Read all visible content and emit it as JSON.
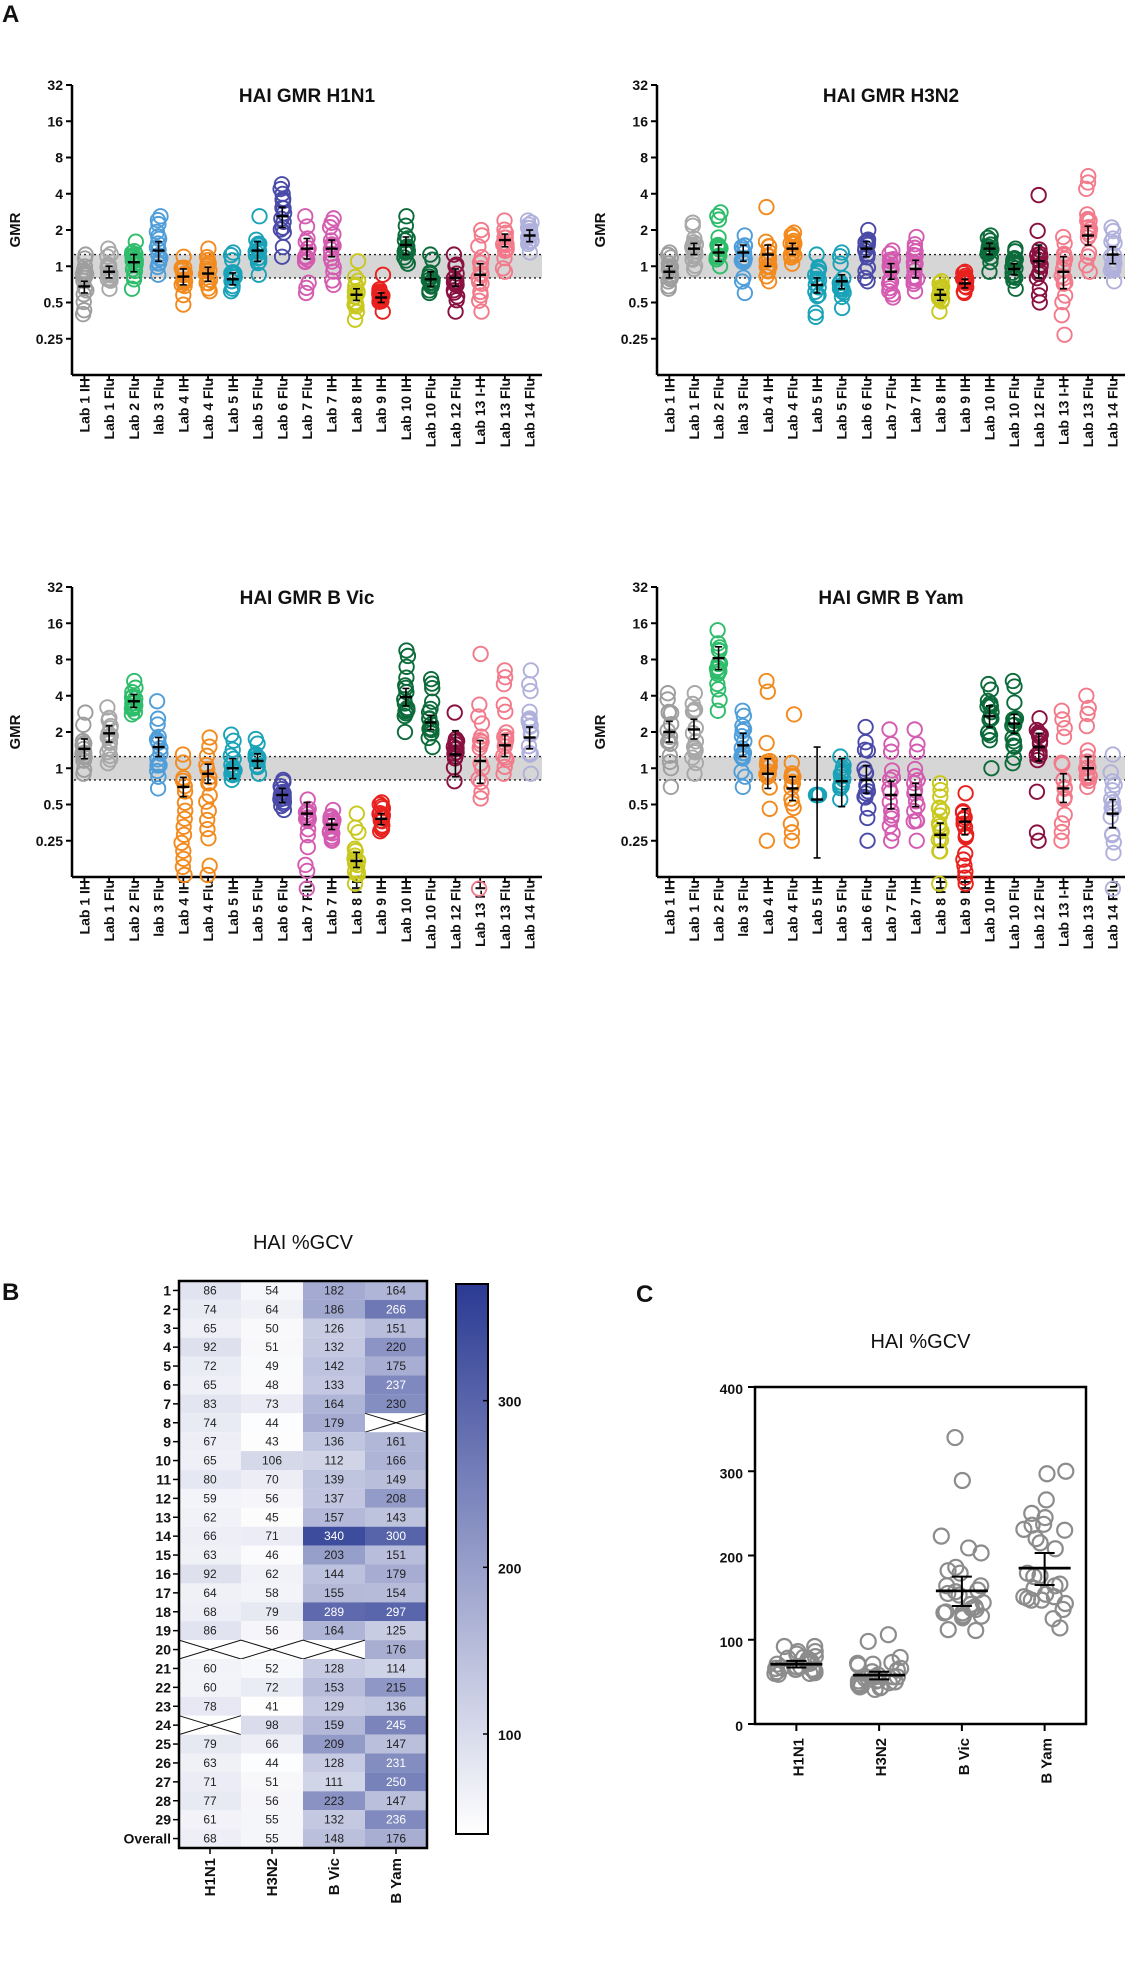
{
  "panel_labels": {
    "a": "A",
    "b": "B",
    "c": "C"
  },
  "chart_data": [
    {
      "type": "scatter",
      "title": "HAI GMR H1N1",
      "ylabel": "GMR",
      "yscale": "log2",
      "ylim": [
        0.125,
        32
      ],
      "yticks": [
        "0.25",
        "0.5",
        "1",
        "2",
        "4",
        "8",
        "16",
        "32"
      ],
      "band": [
        0.8,
        1.25
      ],
      "categories": [
        "Lab 1 IH",
        "Lab 1 Flu",
        "Lab 2 Flu",
        "lab 3 Flu",
        "Lab 4 IH",
        "Lab 4 Flu",
        "Lab 5 IH",
        "Lab 5 Flu",
        "Lab 6 Flu",
        "Lab 7 Flu",
        "Lab 7 IH",
        "Lab 8 IH",
        "Lab 9 IH",
        "Lab 10 IH",
        "Lab 10 Flu",
        "Lab 12 Flu",
        "Lab 13 I-H",
        "Lab 13 Flu",
        "Lab 14 Flu"
      ],
      "colors": [
        "#9e9e9e",
        "#a8a8a8",
        "#2ebd6b",
        "#4f9ed9",
        "#f28a1e",
        "#f28a1e",
        "#1aa3b8",
        "#1aa3b8",
        "#4a4aa8",
        "#d45bb0",
        "#d45bb0",
        "#c8c81e",
        "#e8201e",
        "#0c6b3a",
        "#0c6b3a",
        "#8a1040",
        "#f27a8a",
        "#f27a8a",
        "#b0b0dc"
      ],
      "gmr": [
        0.68,
        0.9,
        1.08,
        1.35,
        0.82,
        0.87,
        0.78,
        1.35,
        2.6,
        1.4,
        1.4,
        0.58,
        0.55,
        1.5,
        0.78,
        0.8,
        0.85,
        1.65,
        1.8
      ],
      "ci_low": [
        0.6,
        0.8,
        0.9,
        1.1,
        0.7,
        0.75,
        0.7,
        1.1,
        2.1,
        1.15,
        1.2,
        0.52,
        0.5,
        1.25,
        0.68,
        0.68,
        0.7,
        1.45,
        1.6
      ],
      "ci_high": [
        0.75,
        1.0,
        1.25,
        1.6,
        0.95,
        0.98,
        0.88,
        1.6,
        3.1,
        1.7,
        1.65,
        0.65,
        0.6,
        1.75,
        0.9,
        0.95,
        1.05,
        1.85,
        2.0
      ],
      "spread_low": [
        0.4,
        0.65,
        0.65,
        0.85,
        0.48,
        0.62,
        0.62,
        0.85,
        1.2,
        0.6,
        0.7,
        0.36,
        0.42,
        1.05,
        0.6,
        0.42,
        0.42,
        0.9,
        1.3
      ],
      "spread_high": [
        1.25,
        1.4,
        1.6,
        2.6,
        1.2,
        1.4,
        1.3,
        2.6,
        4.8,
        2.6,
        2.5,
        1.1,
        0.85,
        2.6,
        1.25,
        1.25,
        2.0,
        2.4,
        2.4
      ]
    },
    {
      "type": "scatter",
      "title": "HAI GMR H3N2",
      "ylabel": "GMR",
      "yscale": "log2",
      "ylim": [
        0.125,
        32
      ],
      "yticks": [
        "0.25",
        "0.5",
        "1",
        "2",
        "4",
        "8",
        "16",
        "32"
      ],
      "band": [
        0.8,
        1.25
      ],
      "categories": [
        "Lab 1 IH",
        "Lab 1 Flu",
        "Lab 2 Flu",
        "lab 3 Flu",
        "Lab 4 IH",
        "Lab 4 Flu",
        "Lab 5 IH",
        "Lab 5 Flu",
        "Lab 6 Flu",
        "Lab 7 Flu",
        "Lab 7 IH",
        "Lab 8 IH",
        "Lab 9 IH",
        "Lab 10 IH",
        "Lab 10 Flu",
        "Lab 12 Flu",
        "Lab 13 I-H",
        "Lab 13 Flu",
        "Lab 14 Flu"
      ],
      "colors": [
        "#9e9e9e",
        "#a8a8a8",
        "#2ebd6b",
        "#4f9ed9",
        "#f28a1e",
        "#f28a1e",
        "#1aa3b8",
        "#1aa3b8",
        "#4a4aa8",
        "#d45bb0",
        "#d45bb0",
        "#c8c81e",
        "#e8201e",
        "#0c6b3a",
        "#0c6b3a",
        "#8a1040",
        "#f27a8a",
        "#f27a8a",
        "#b0b0dc"
      ],
      "gmr": [
        0.9,
        1.4,
        1.3,
        1.3,
        1.25,
        1.4,
        0.7,
        0.75,
        1.4,
        0.9,
        0.95,
        0.58,
        0.72,
        1.4,
        0.95,
        1.1,
        0.9,
        1.8,
        1.25
      ],
      "ci_low": [
        0.8,
        1.25,
        1.1,
        1.1,
        1.0,
        1.25,
        0.6,
        0.65,
        1.2,
        0.78,
        0.8,
        0.52,
        0.66,
        1.25,
        0.85,
        0.8,
        0.65,
        1.5,
        1.05
      ],
      "ci_high": [
        1.0,
        1.55,
        1.5,
        1.5,
        1.5,
        1.55,
        0.8,
        0.85,
        1.6,
        1.05,
        1.12,
        0.64,
        0.78,
        1.55,
        1.05,
        1.5,
        1.2,
        2.15,
        1.45
      ],
      "spread_low": [
        0.65,
        0.95,
        1.0,
        0.6,
        0.75,
        1.05,
        0.38,
        0.45,
        0.75,
        0.55,
        0.62,
        0.42,
        0.6,
        0.9,
        0.65,
        0.5,
        0.27,
        0.9,
        0.75
      ],
      "spread_high": [
        1.3,
        2.3,
        2.8,
        1.8,
        3.1,
        1.9,
        1.25,
        1.3,
        2.0,
        1.35,
        1.75,
        0.75,
        0.9,
        1.8,
        1.4,
        3.9,
        1.75,
        5.6,
        2.1
      ]
    },
    {
      "type": "scatter",
      "title": "HAI GMR B Vic",
      "ylabel": "GMR",
      "yscale": "log2",
      "ylim": [
        0.125,
        32
      ],
      "yticks": [
        "0.25",
        "0.5",
        "1",
        "2",
        "4",
        "8",
        "16",
        "32"
      ],
      "band": [
        0.8,
        1.25
      ],
      "categories": [
        "Lab 1 IH",
        "Lab 1 Flu",
        "Lab 2 Flu",
        "lab 3 Flu",
        "Lab 4 IH",
        "Lab 4 Flu",
        "Lab 5 IH",
        "Lab 5 Flu",
        "Lab 6 Flu",
        "Lab 7 Flu",
        "Lab 7 IH",
        "Lab 8 IH",
        "Lab 9 IH",
        "Lab 10 IH",
        "Lab 10 Flu",
        "Lab 12 Flu",
        "Lab 13 I-H",
        "Lab 13 Flu",
        "Lab 14 Flu"
      ],
      "colors": [
        "#9e9e9e",
        "#a8a8a8",
        "#2ebd6b",
        "#4f9ed9",
        "#f28a1e",
        "#f28a1e",
        "#1aa3b8",
        "#1aa3b8",
        "#4a4aa8",
        "#d45bb0",
        "#d45bb0",
        "#c8c81e",
        "#e8201e",
        "#0c6b3a",
        "#0c6b3a",
        "#8a1040",
        "#f27a8a",
        "#f27a8a",
        "#b0b0dc"
      ],
      "gmr": [
        1.45,
        1.95,
        3.6,
        1.5,
        0.7,
        0.9,
        1.0,
        1.15,
        0.6,
        0.42,
        0.34,
        0.17,
        0.38,
        3.9,
        2.4,
        1.3,
        1.15,
        1.55,
        1.8
      ],
      "ci_low": [
        1.2,
        1.65,
        3.2,
        1.25,
        0.58,
        0.75,
        0.82,
        1.0,
        0.52,
        0.34,
        0.31,
        0.15,
        0.34,
        3.3,
        2.1,
        0.85,
        0.75,
        1.25,
        1.45
      ],
      "ci_high": [
        1.75,
        2.25,
        4.1,
        1.8,
        0.84,
        1.08,
        1.2,
        1.32,
        0.68,
        0.52,
        0.38,
        0.2,
        0.42,
        4.6,
        2.75,
        2.05,
        1.7,
        1.9,
        2.2
      ],
      "spread_low": [
        0.9,
        1.1,
        2.8,
        0.68,
        0.13,
        0.13,
        0.8,
        0.9,
        0.45,
        0.1,
        0.25,
        0.11,
        0.3,
        2.0,
        1.5,
        0.78,
        0.1,
        0.9,
        0.9
      ],
      "spread_high": [
        2.9,
        3.2,
        5.3,
        3.6,
        1.3,
        1.8,
        1.9,
        1.75,
        0.8,
        0.55,
        0.45,
        0.42,
        0.52,
        9.5,
        5.5,
        2.9,
        8.9,
        6.5,
        6.5
      ]
    },
    {
      "type": "scatter",
      "title": "HAI GMR B Yam",
      "ylabel": "GMR",
      "yscale": "log2",
      "ylim": [
        0.125,
        32
      ],
      "yticks": [
        "0.25",
        "0.5",
        "1",
        "2",
        "4",
        "8",
        "16",
        "32"
      ],
      "band": [
        0.8,
        1.25
      ],
      "categories": [
        "Lab 1 IH",
        "Lab 1 Flu",
        "Lab 2 Flu",
        "lab 3 Flu",
        "Lab 4 IH",
        "Lab 4 Flu",
        "Lab 5 IH",
        "Lab 5 Flu",
        "Lab 6 Flu",
        "Lab 7 Flu",
        "Lab 7 IH",
        "Lab 8 IH",
        "Lab 9 IH",
        "Lab 10 IH",
        "Lab 10 Flu",
        "Lab 12 Flu",
        "Lab 13 I-H",
        "Lab 13 Flu",
        "Lab 14 Flu"
      ],
      "colors": [
        "#9e9e9e",
        "#a8a8a8",
        "#2ebd6b",
        "#4f9ed9",
        "#f28a1e",
        "#f28a1e",
        "#1aa3b8",
        "#1aa3b8",
        "#4a4aa8",
        "#d45bb0",
        "#d45bb0",
        "#c8c81e",
        "#e8201e",
        "#0c6b3a",
        "#0c6b3a",
        "#8a1040",
        "#f27a8a",
        "#f27a8a",
        "#b0b0dc"
      ],
      "gmr": [
        2.0,
        2.1,
        8.2,
        1.55,
        0.9,
        0.68,
        0.55,
        0.78,
        0.8,
        0.6,
        0.6,
        0.28,
        0.36,
        2.7,
        2.35,
        1.5,
        0.68,
        1.0,
        0.42
      ],
      "ci_low": [
        1.65,
        1.75,
        6.6,
        1.25,
        0.68,
        0.54,
        0.18,
        0.48,
        0.62,
        0.46,
        0.48,
        0.22,
        0.28,
        2.2,
        1.95,
        1.15,
        0.52,
        0.8,
        0.32
      ],
      "ci_high": [
        2.45,
        2.55,
        10.2,
        1.95,
        1.2,
        0.85,
        1.5,
        1.2,
        1.05,
        0.78,
        0.75,
        0.35,
        0.46,
        3.3,
        2.8,
        1.95,
        0.9,
        1.25,
        0.55
      ],
      "spread_low": [
        0.7,
        0.9,
        3.0,
        0.7,
        0.25,
        0.25,
        0.6,
        0.55,
        0.25,
        0.25,
        0.25,
        0.11,
        0.11,
        1.0,
        1.1,
        0.25,
        0.25,
        0.7,
        0.1
      ],
      "spread_high": [
        4.2,
        4.2,
        14.0,
        3.0,
        5.3,
        2.8,
        0.6,
        1.25,
        2.2,
        2.1,
        2.1,
        0.75,
        0.62,
        5.0,
        5.3,
        2.6,
        3.0,
        4.0,
        1.3
      ]
    },
    {
      "type": "heatmap",
      "title": "HAI %GCV",
      "columns": [
        "H1N1",
        "H3N2",
        "B Vic",
        "B Yam"
      ],
      "rows": [
        "1",
        "2",
        "3",
        "4",
        "5",
        "6",
        "7",
        "8",
        "9",
        "10",
        "11",
        "12",
        "13",
        "14",
        "15",
        "16",
        "17",
        "18",
        "19",
        "20",
        "21",
        "22",
        "23",
        "24",
        "25",
        "26",
        "27",
        "28",
        "29",
        "Overall"
      ],
      "values": [
        [
          "86",
          "54",
          "182",
          "164"
        ],
        [
          "74",
          "64",
          "186",
          "266"
        ],
        [
          "65",
          "50",
          "126",
          "151"
        ],
        [
          "92",
          "51",
          "132",
          "220"
        ],
        [
          "72",
          "49",
          "142",
          "175"
        ],
        [
          "65",
          "48",
          "133",
          "237"
        ],
        [
          "83",
          "73",
          "164",
          "230"
        ],
        [
          "74",
          "44",
          "179",
          ""
        ],
        [
          "67",
          "43",
          "136",
          "161"
        ],
        [
          "65",
          "106",
          "112",
          "166"
        ],
        [
          "80",
          "70",
          "139",
          "149"
        ],
        [
          "59",
          "56",
          "137",
          "208"
        ],
        [
          "62",
          "45",
          "157",
          "143"
        ],
        [
          "66",
          "71",
          "340",
          "300"
        ],
        [
          "63",
          "46",
          "203",
          "151"
        ],
        [
          "92",
          "62",
          "144",
          "179"
        ],
        [
          "64",
          "58",
          "155",
          "154"
        ],
        [
          "68",
          "79",
          "289",
          "297"
        ],
        [
          "86",
          "56",
          "164",
          "125"
        ],
        [
          "",
          "",
          "",
          "176"
        ],
        [
          "60",
          "52",
          "128",
          "114"
        ],
        [
          "60",
          "72",
          "153",
          "215"
        ],
        [
          "78",
          "41",
          "129",
          "136"
        ],
        [
          "",
          "98",
          "159",
          "245"
        ],
        [
          "79",
          "66",
          "209",
          "147"
        ],
        [
          "63",
          "44",
          "128",
          "231"
        ],
        [
          "71",
          "51",
          "111",
          "250"
        ],
        [
          "77",
          "56",
          "223",
          "147"
        ],
        [
          "61",
          "55",
          "132",
          "236"
        ],
        [
          "68",
          "55",
          "148",
          "176"
        ]
      ],
      "colorbar_ticks": [
        "300",
        "200",
        "100"
      ],
      "colorbar_range": [
        40,
        370
      ],
      "color_low": "#ffffff",
      "color_high": "#2b3a93"
    },
    {
      "type": "scatter",
      "title": "HAI %GCV",
      "categories": [
        "H1N1",
        "H3N2",
        "B Vic",
        "B Yam"
      ],
      "ylim": [
        0,
        400
      ],
      "yticks": [
        "0",
        "100",
        "200",
        "300",
        "400"
      ],
      "mean": [
        71,
        58,
        158,
        185
      ],
      "ci_low": [
        67,
        53,
        140,
        165
      ],
      "ci_high": [
        75,
        62,
        175,
        203
      ],
      "points": [
        [
          86,
          74,
          65,
          92,
          72,
          65,
          83,
          74,
          67,
          65,
          80,
          59,
          62,
          66,
          63,
          92,
          64,
          68,
          86,
          60,
          60,
          78,
          79,
          63,
          71,
          77,
          61,
          68
        ],
        [
          54,
          64,
          50,
          51,
          49,
          48,
          73,
          44,
          43,
          106,
          70,
          56,
          45,
          71,
          46,
          62,
          58,
          79,
          56,
          52,
          72,
          41,
          98,
          66,
          44,
          51,
          56,
          55
        ],
        [
          182,
          186,
          126,
          132,
          142,
          133,
          164,
          179,
          136,
          112,
          139,
          137,
          157,
          340,
          203,
          144,
          155,
          289,
          164,
          128,
          153,
          129,
          159,
          209,
          128,
          111,
          223,
          132
        ],
        [
          164,
          266,
          151,
          220,
          175,
          237,
          230,
          161,
          166,
          149,
          208,
          143,
          300,
          151,
          179,
          154,
          297,
          125,
          176,
          114,
          215,
          136,
          245,
          147,
          231,
          250,
          147,
          236
        ]
      ],
      "point_color": "#8c8c8c"
    }
  ]
}
